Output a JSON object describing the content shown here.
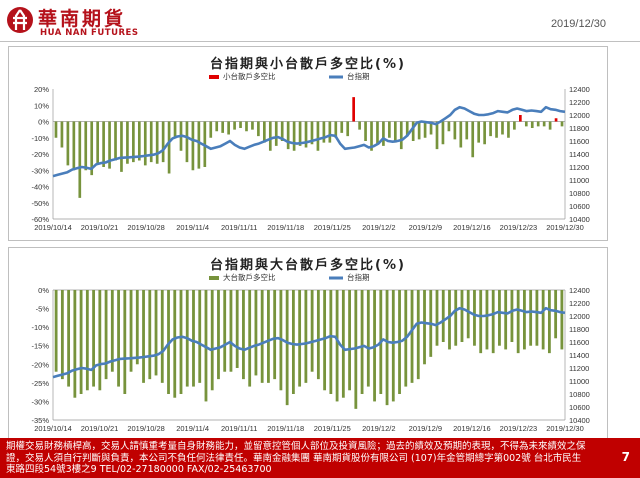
{
  "header": {
    "logo_cn": "華南期貨",
    "logo_en": "HUA NAN FUTURES",
    "date": "2019/12/30"
  },
  "colors": {
    "brand": "#b5121b",
    "footer_bg": "#c00000",
    "bar_green": "#77933c",
    "bar_red": "#e00000",
    "index_line": "#4a7ebb"
  },
  "footer": {
    "disclaimer": "期權交易財務槓桿高，交易人請慎重考量自身財務能力，並留意控管個人部位及投資風險；過去的績效及預期的表現，不得為未來績效之保證，交易人須自行判斷與負責，本公司不負任何法律責任。華南金融集團 華南期貨股份有限公司 (107)年金管期總字第002號 台北市民生東路四段54號3樓之9 TEL/02-27180000 FAX/02-25463700",
    "page": "7"
  },
  "chart_data": [
    {
      "type": "bar",
      "title": "台指期與小台散戶多空比(%)",
      "legend": [
        "小台散戶多空比",
        "台指期"
      ],
      "legend_position": "top",
      "x_ticks": [
        "2019/10/14",
        "2019/10/21",
        "2019/10/28",
        "2019/11/4",
        "2019/11/11",
        "2019/11/18",
        "2019/11/25",
        "2019/12/2",
        "2019/12/9",
        "2019/12/16",
        "2019/12/23",
        "2019/12/30"
      ],
      "y_left": {
        "lim": [
          -60,
          20
        ],
        "ticks": [
          "20%",
          "10%",
          "0%",
          "-10%",
          "-20%",
          "-30%",
          "-40%",
          "-50%",
          "-60%"
        ]
      },
      "y_right": {
        "lim": [
          10400,
          12400
        ],
        "ticks": [
          "12400",
          "12200",
          "12000",
          "11800",
          "11600",
          "11400",
          "11200",
          "11000",
          "10800",
          "10600",
          "10400"
        ]
      },
      "series": [
        {
          "name": "小台散戶多空比",
          "kind": "bar",
          "values": [
            -10,
            -16,
            -27,
            -30,
            -47,
            -30,
            -33,
            -26,
            -28,
            -29,
            -24,
            -31,
            -26,
            -25,
            -24,
            -27,
            -25,
            -26,
            -25,
            -32,
            -10,
            -18,
            -25,
            -30,
            -29,
            -28,
            -10,
            -6,
            -7,
            -8,
            -5,
            -4,
            -6,
            -5,
            -9,
            -13,
            -18,
            -15,
            -12,
            -17,
            -18,
            -15,
            -16,
            -14,
            -18,
            -13,
            -13,
            -10,
            -7,
            -9,
            15,
            -5,
            -12,
            -18,
            -14,
            -15,
            -10,
            -13,
            -17,
            -9,
            -12,
            -11,
            -10,
            -8,
            -17,
            -14,
            -6,
            -11,
            -16,
            -11,
            -22,
            -13,
            -14,
            -9,
            -10,
            -8,
            -10,
            -5,
            4,
            -3,
            -4,
            -3,
            -3,
            -5,
            2,
            -3
          ]
        },
        {
          "name": "台指期",
          "kind": "line",
          "values": [
            11060,
            11080,
            11100,
            11120,
            11160,
            11180,
            11200,
            11190,
            11170,
            11240,
            11260,
            11270,
            11300,
            11320,
            11340,
            11345,
            11350,
            11355,
            11360,
            11370,
            11380,
            11390,
            11410,
            11460,
            11560,
            11640,
            11670,
            11680,
            11660,
            11620,
            11600,
            11560,
            11520,
            11480,
            11500,
            11520,
            11560,
            11600,
            11540,
            11500,
            11480,
            11510,
            11540,
            11560,
            11590,
            11620,
            11650,
            11660,
            11630,
            11590,
            11570,
            11560,
            11570,
            11580,
            11600,
            11620,
            11640,
            11660,
            11690,
            11680,
            11560,
            11480,
            11490,
            11500,
            11520,
            11540,
            11500,
            11520,
            11560,
            11640,
            11600,
            11590,
            11600,
            11620,
            11680,
            11780,
            11880,
            11900,
            11890,
            11880,
            11860,
            11900,
            11950,
            12000,
            12080,
            12120,
            12100,
            12060,
            12020,
            12000,
            12000,
            12010,
            12030,
            12060,
            12050,
            12040,
            12080,
            12100,
            12080,
            12060,
            12070,
            12060,
            12050,
            12120,
            12090,
            12080,
            12060,
            12050
          ]
        }
      ]
    },
    {
      "type": "bar",
      "title": "台指期與大台散戶多空比(%)",
      "legend": [
        "大台散戶多空比",
        "台指期"
      ],
      "legend_position": "top",
      "x_ticks": [
        "2019/10/14",
        "2019/10/21",
        "2019/10/28",
        "2019/11/4",
        "2019/11/11",
        "2019/11/18",
        "2019/11/25",
        "2019/12/2",
        "2019/12/9",
        "2019/12/16",
        "2019/12/23",
        "2019/12/30"
      ],
      "y_left": {
        "lim": [
          -35,
          0
        ],
        "ticks": [
          "0%",
          "-5%",
          "-10%",
          "-15%",
          "-20%",
          "-25%",
          "-30%",
          "-35%"
        ]
      },
      "y_right": {
        "lim": [
          10400,
          12400
        ],
        "ticks": [
          "12400",
          "12200",
          "12000",
          "11800",
          "11600",
          "11400",
          "11200",
          "11000",
          "10800",
          "10600",
          "10400"
        ]
      },
      "series": [
        {
          "name": "大台散戶多空比",
          "kind": "bar",
          "values": [
            -22,
            -24,
            -26,
            -29,
            -28,
            -27,
            -26,
            -27,
            -24,
            -22,
            -26,
            -28,
            -22,
            -20,
            -25,
            -24,
            -23,
            -25,
            -28,
            -29,
            -28,
            -26,
            -26,
            -25,
            -30,
            -27,
            -24,
            -22,
            -22,
            -21,
            -24,
            -26,
            -23,
            -25,
            -25,
            -24,
            -27,
            -31,
            -28,
            -26,
            -25,
            -22,
            -24,
            -27,
            -28,
            -30,
            -29,
            -27,
            -32,
            -28,
            -26,
            -30,
            -28,
            -31,
            -30,
            -28,
            -26,
            -25,
            -24,
            -20,
            -18,
            -15,
            -14,
            -16,
            -15,
            -14,
            -13,
            -15,
            -17,
            -16,
            -17,
            -15,
            -16,
            -14,
            -17,
            -16,
            -15,
            -15,
            -16,
            -17,
            -13,
            -16
          ]
        },
        {
          "name": "台指期",
          "kind": "line",
          "values": [
            11060,
            11080,
            11100,
            11120,
            11160,
            11180,
            11200,
            11190,
            11170,
            11240,
            11260,
            11270,
            11300,
            11320,
            11340,
            11345,
            11350,
            11355,
            11360,
            11370,
            11380,
            11390,
            11410,
            11460,
            11560,
            11640,
            11670,
            11680,
            11660,
            11620,
            11600,
            11560,
            11520,
            11480,
            11500,
            11520,
            11560,
            11600,
            11540,
            11500,
            11480,
            11510,
            11540,
            11560,
            11590,
            11620,
            11650,
            11660,
            11630,
            11590,
            11570,
            11560,
            11570,
            11580,
            11600,
            11620,
            11640,
            11660,
            11690,
            11680,
            11560,
            11480,
            11490,
            11500,
            11520,
            11540,
            11500,
            11520,
            11560,
            11640,
            11600,
            11590,
            11600,
            11620,
            11680,
            11780,
            11880,
            11900,
            11890,
            11880,
            11860,
            11900,
            11950,
            12000,
            12080,
            12120,
            12100,
            12060,
            12020,
            12000,
            12000,
            12010,
            12030,
            12060,
            12050,
            12040,
            12080,
            12100,
            12080,
            12060,
            12070,
            12060,
            12050,
            12120,
            12090,
            12080,
            12060,
            12050
          ]
        }
      ]
    }
  ]
}
